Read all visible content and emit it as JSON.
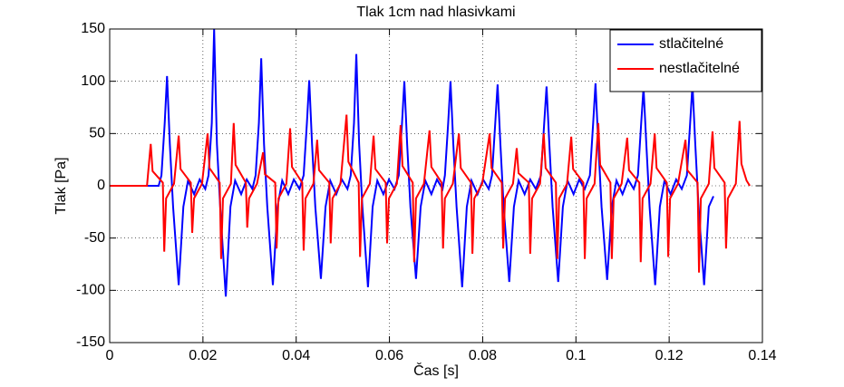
{
  "chart_data": {
    "type": "line",
    "title": "Tlak 1cm nad hlasivkami",
    "x_label": "Čas [s]",
    "y_label": "Tlak [Pa]",
    "xlim": [
      0,
      0.14
    ],
    "xticks": [
      0,
      0.02,
      0.04,
      0.06,
      0.08,
      0.1,
      0.12,
      0.14
    ],
    "ylim": [
      -150,
      150
    ],
    "yticks": [
      -150,
      -100,
      -50,
      0,
      50,
      100,
      150
    ],
    "grid": true,
    "legend": "upper right",
    "series": [
      {
        "name": "stlačitelné",
        "color": "#0000ff",
        "x": [
          0,
          0.0105,
          0.0111,
          0.0118,
          0.0123,
          0.0129,
          0.0136,
          0.0148,
          0.0158,
          0.0168,
          0.0181,
          0.0193,
          0.0205,
          0.0212,
          0.0219,
          0.0224,
          0.023,
          0.0237,
          0.0249,
          0.0259,
          0.0269,
          0.0282,
          0.0294,
          0.0306,
          0.0313,
          0.032,
          0.0325,
          0.0331,
          0.0338,
          0.035,
          0.036,
          0.037,
          0.0383,
          0.0395,
          0.0407,
          0.0416,
          0.0423,
          0.0428,
          0.0434,
          0.0441,
          0.0453,
          0.0463,
          0.0473,
          0.0486,
          0.0498,
          0.051,
          0.0517,
          0.0524,
          0.0529,
          0.0535,
          0.0542,
          0.0554,
          0.0564,
          0.0574,
          0.0587,
          0.0599,
          0.0611,
          0.062,
          0.0627,
          0.0632,
          0.0638,
          0.0645,
          0.0657,
          0.0667,
          0.0677,
          0.069,
          0.0702,
          0.0714,
          0.0719,
          0.0726,
          0.0731,
          0.0737,
          0.0744,
          0.0756,
          0.0766,
          0.0776,
          0.0789,
          0.0801,
          0.0813,
          0.082,
          0.0827,
          0.0832,
          0.0838,
          0.0845,
          0.0857,
          0.0867,
          0.0877,
          0.089,
          0.0902,
          0.0914,
          0.0925,
          0.0932,
          0.0937,
          0.0943,
          0.095,
          0.0962,
          0.0972,
          0.0982,
          0.0995,
          0.1007,
          0.1019,
          0.103,
          0.1037,
          0.1042,
          0.1048,
          0.1055,
          0.1067,
          0.1077,
          0.1087,
          0.11,
          0.1112,
          0.1124,
          0.1133,
          0.114,
          0.1145,
          0.1151,
          0.1158,
          0.117,
          0.118,
          0.119,
          0.1203,
          0.1215,
          0.1227,
          0.1238,
          0.1245,
          0.125,
          0.1256,
          0.1263,
          0.1275,
          0.1285,
          0.1295
        ],
        "values": [
          0,
          0,
          10,
          60,
          105,
          40,
          -20,
          -95,
          -20,
          5,
          -8,
          6,
          -3,
          10,
          60,
          150,
          40,
          -20,
          -106,
          -20,
          5,
          -8,
          6,
          -3,
          10,
          60,
          122,
          40,
          -20,
          -95,
          -20,
          5,
          -8,
          6,
          -3,
          10,
          60,
          101,
          40,
          -20,
          -89,
          -20,
          5,
          -8,
          6,
          -3,
          10,
          60,
          126,
          40,
          -20,
          -97,
          -20,
          5,
          -8,
          6,
          -3,
          10,
          60,
          100,
          40,
          -20,
          -89,
          -20,
          5,
          -8,
          6,
          -3,
          10,
          60,
          100,
          40,
          -20,
          -97,
          -20,
          5,
          -8,
          6,
          -3,
          10,
          60,
          97,
          40,
          -20,
          -92,
          -20,
          5,
          -8,
          6,
          -3,
          10,
          60,
          95,
          40,
          -20,
          -92,
          -20,
          5,
          -8,
          6,
          -3,
          10,
          60,
          98,
          40,
          -20,
          -90,
          -20,
          5,
          -8,
          6,
          -3,
          10,
          60,
          94,
          40,
          -20,
          -95,
          -20,
          5,
          -8,
          6,
          -3,
          10,
          60,
          97,
          40,
          -20,
          -95,
          -20,
          -10
        ]
      },
      {
        "name": "nestlačitelné",
        "color": "#ff0000",
        "x": [
          0,
          0.008,
          0.0088,
          0.0092,
          0.0114,
          0.0117,
          0.0121,
          0.0138,
          0.0148,
          0.0152,
          0.0174,
          0.0177,
          0.0181,
          0.0198,
          0.021,
          0.0214,
          0.0236,
          0.0239,
          0.0243,
          0.026,
          0.0266,
          0.027,
          0.0292,
          0.0295,
          0.0299,
          0.0316,
          0.0329,
          0.0333,
          0.0355,
          0.0358,
          0.0362,
          0.0379,
          0.0387,
          0.0391,
          0.0413,
          0.0416,
          0.042,
          0.0437,
          0.0445,
          0.0449,
          0.0471,
          0.0474,
          0.0478,
          0.0495,
          0.0508,
          0.0512,
          0.0534,
          0.0537,
          0.0541,
          0.0558,
          0.0566,
          0.057,
          0.0592,
          0.0595,
          0.0599,
          0.0616,
          0.0624,
          0.0628,
          0.065,
          0.0653,
          0.0657,
          0.0674,
          0.0686,
          0.069,
          0.0712,
          0.0715,
          0.0719,
          0.0736,
          0.0749,
          0.0753,
          0.0775,
          0.0778,
          0.0782,
          0.0799,
          0.0815,
          0.0819,
          0.0841,
          0.0844,
          0.0848,
          0.0865,
          0.0873,
          0.0877,
          0.0899,
          0.0902,
          0.0906,
          0.0923,
          0.0931,
          0.0935,
          0.0957,
          0.096,
          0.0964,
          0.0981,
          0.099,
          0.0994,
          0.1016,
          0.1019,
          0.1023,
          0.104,
          0.1048,
          0.1052,
          0.1074,
          0.1077,
          0.1081,
          0.1098,
          0.111,
          0.1114,
          0.1136,
          0.1139,
          0.1143,
          0.116,
          0.1169,
          0.1173,
          0.1195,
          0.1198,
          0.1202,
          0.1219,
          0.1235,
          0.1239,
          0.1261,
          0.1264,
          0.1268,
          0.1285,
          0.1293,
          0.1297,
          0.1319,
          0.1322,
          0.1326,
          0.1343,
          0.1351,
          0.1355,
          0.1366,
          0.1373
        ],
        "values": [
          0,
          0,
          40,
          14,
          3,
          -63,
          -12,
          2,
          48,
          16,
          3,
          -45,
          -12,
          2,
          50,
          17,
          3,
          -70,
          -12,
          2,
          60,
          20,
          3,
          -40,
          -12,
          2,
          32,
          11,
          3,
          -60,
          -12,
          2,
          55,
          18,
          3,
          -62,
          -12,
          2,
          44,
          15,
          3,
          -55,
          -12,
          2,
          68,
          23,
          3,
          -68,
          -12,
          2,
          48,
          16,
          3,
          -55,
          -12,
          2,
          58,
          19,
          3,
          -73,
          -12,
          2,
          53,
          18,
          3,
          -60,
          -12,
          2,
          50,
          17,
          3,
          -65,
          -12,
          2,
          50,
          17,
          3,
          -60,
          -12,
          2,
          36,
          12,
          3,
          -65,
          -12,
          2,
          50,
          17,
          3,
          -70,
          -12,
          2,
          47,
          16,
          3,
          -70,
          -12,
          2,
          60,
          20,
          3,
          -70,
          -12,
          2,
          46,
          15,
          3,
          -73,
          -12,
          2,
          50,
          17,
          3,
          -68,
          -12,
          2,
          44,
          15,
          3,
          -83,
          -12,
          2,
          52,
          17,
          3,
          -60,
          -12,
          2,
          62,
          21,
          5,
          0
        ]
      }
    ]
  }
}
